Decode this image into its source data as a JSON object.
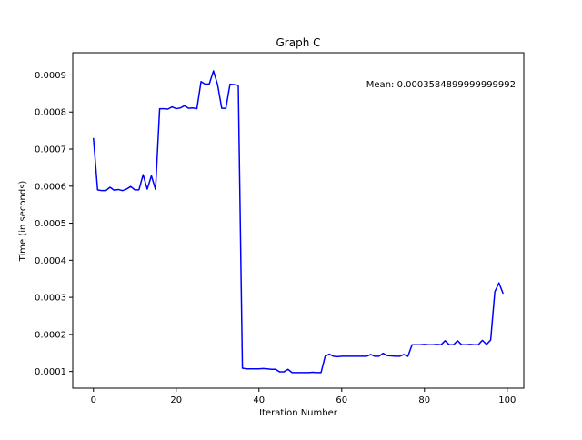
{
  "chart_data": {
    "type": "line",
    "title": "Graph C",
    "xlabel": "Iteration Number",
    "ylabel": "Time (in seconds)",
    "xlim": [
      -5,
      104
    ],
    "ylim": [
      5.5e-05,
      0.00096
    ],
    "x_ticks": [
      0,
      20,
      40,
      60,
      80,
      100
    ],
    "x_tick_labels": [
      "0",
      "20",
      "40",
      "60",
      "80",
      "100"
    ],
    "y_ticks": [
      0.0001,
      0.0002,
      0.0003,
      0.0004,
      0.0005,
      0.0006,
      0.0007,
      0.0008,
      0.0009
    ],
    "y_tick_labels": [
      "0.0001",
      "0.0002",
      "0.0003",
      "0.0004",
      "0.0005",
      "0.0006",
      "0.0007",
      "0.0008",
      "0.0009"
    ],
    "grid": false,
    "annotation": "Mean: 0.0003584899999999992",
    "line_color": "#0000ff",
    "series": [
      {
        "x": [
          0,
          1,
          2,
          3,
          4,
          5,
          6,
          7,
          8,
          9,
          10,
          11,
          12,
          13,
          14,
          15,
          16,
          17,
          18,
          19,
          20,
          21,
          22,
          23,
          24,
          25,
          26,
          27,
          28,
          29,
          30,
          31,
          32,
          33,
          34,
          35,
          36,
          37,
          38,
          39,
          40,
          41,
          42,
          43,
          44,
          45,
          46,
          47,
          48,
          49,
          50,
          51,
          52,
          53,
          54,
          55,
          56,
          57,
          58,
          59,
          60,
          61,
          62,
          63,
          64,
          65,
          66,
          67,
          68,
          69,
          70,
          71,
          72,
          73,
          74,
          75,
          76,
          77,
          78,
          79,
          80,
          81,
          82,
          83,
          84,
          85,
          86,
          87,
          88,
          89,
          90,
          91,
          92,
          93,
          94,
          95,
          96,
          97,
          98,
          99
        ],
        "values": [
          0.00073,
          0.00059,
          0.000588,
          0.000588,
          0.000597,
          0.000589,
          0.000591,
          0.000588,
          0.000592,
          0.000599,
          0.00059,
          0.00059,
          0.000631,
          0.000592,
          0.000628,
          0.000591,
          0.000809,
          0.000809,
          0.000808,
          0.000814,
          0.000809,
          0.000811,
          0.000817,
          0.00081,
          0.000811,
          0.000809,
          0.000882,
          0.000875,
          0.000876,
          0.000911,
          0.000874,
          0.00081,
          0.00081,
          0.000875,
          0.000874,
          0.000872,
          0.000109,
          0.000107,
          0.000107,
          0.000107,
          0.000107,
          0.000108,
          0.000107,
          0.000106,
          0.000106,
          9.9e-05,
          9.9e-05,
          0.000106,
          9.7e-05,
          9.7e-05,
          9.7e-05,
          9.7e-05,
          9.7e-05,
          9.8e-05,
          9.7e-05,
          9.7e-05,
          0.000141,
          0.000147,
          0.000141,
          0.00014,
          0.000141,
          0.000141,
          0.000141,
          0.000141,
          0.000141,
          0.000141,
          0.000141,
          0.000146,
          0.000141,
          0.000141,
          0.000149,
          0.000143,
          0.000142,
          0.000141,
          0.000141,
          0.000146,
          0.000141,
          0.000172,
          0.000172,
          0.000172,
          0.000173,
          0.000172,
          0.000172,
          0.000173,
          0.000172,
          0.000183,
          0.000172,
          0.000172,
          0.000183,
          0.000172,
          0.000172,
          0.000173,
          0.000172,
          0.000172,
          0.000184,
          0.000173,
          0.000185,
          0.000315,
          0.000339,
          0.00031
        ]
      }
    ]
  }
}
